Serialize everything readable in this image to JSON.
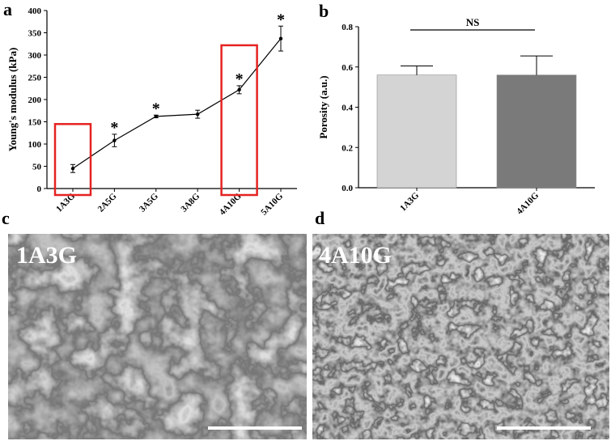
{
  "panels": {
    "a": "a",
    "b": "b",
    "c": "c",
    "d": "d"
  },
  "chart_data": [
    {
      "type": "line",
      "panel": "a",
      "categories": [
        "1A3G",
        "2A5G",
        "3A5G",
        "3A8G",
        "4A10G",
        "5A10G"
      ],
      "values": [
        45,
        108,
        162,
        167,
        222,
        337
      ],
      "errors": [
        9,
        14,
        3,
        9,
        9,
        28
      ],
      "significance": [
        "",
        "*",
        "*",
        "",
        "*",
        "*"
      ],
      "highlighted": [
        "1A3G",
        "4A10G"
      ],
      "highlight_color": "#e52222",
      "ylabel": "Young's modulus (kPa)",
      "yticks": [
        "0",
        "50",
        "100",
        "150",
        "200",
        "250",
        "300",
        "350",
        "400"
      ],
      "ylim": [
        0,
        400
      ]
    },
    {
      "type": "bar",
      "panel": "b",
      "categories": [
        "1A3G",
        "4A10G"
      ],
      "values": [
        0.56,
        0.56
      ],
      "errors": [
        0.045,
        0.095
      ],
      "bar_colors": [
        "#d4d4d4",
        "#7a7a7a"
      ],
      "ylabel": "Porosity (a.u.)",
      "yticks": [
        "0.0",
        "0.2",
        "0.4",
        "0.6",
        "0.8"
      ],
      "ylim": [
        0,
        0.8
      ],
      "significance_label": "NS"
    }
  ],
  "images": [
    {
      "panel": "c",
      "label": "1A3G"
    },
    {
      "panel": "d",
      "label": "4A10G"
    }
  ]
}
